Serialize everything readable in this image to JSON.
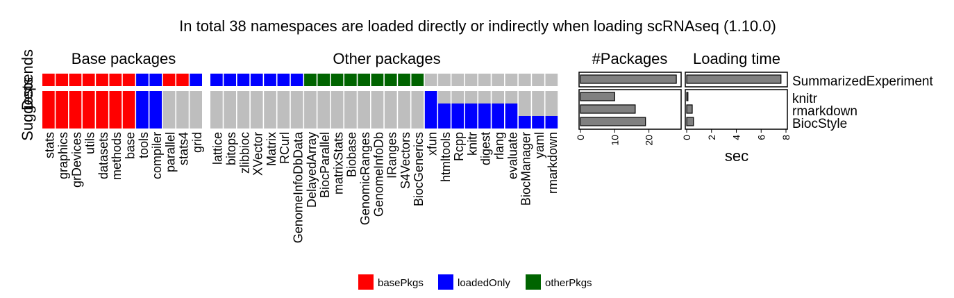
{
  "chart_data": {
    "type": "heatmap",
    "title": "In total 38 namespaces are loaded directly or indirectly when loading scRNAseq (1.10.0)",
    "rows": [
      "Depends",
      "Suggests"
    ],
    "row_label_depends": "Depends",
    "row_label_suggests": "Suggests",
    "panels": {
      "base_title": "Base packages",
      "other_title": "Other packages",
      "npkg_title": "#Packages",
      "time_title": "Loading time"
    },
    "base_packages": [
      "stats",
      "graphics",
      "grDevices",
      "utils",
      "datasets",
      "methods",
      "base",
      "tools",
      "compiler",
      "parallel",
      "stats4",
      "grid"
    ],
    "other_packages": [
      "lattice",
      "bitops",
      "zlibbioc",
      "XVector",
      "Matrix",
      "RCurl",
      "GenomeInfoDbData",
      "DelayedArray",
      "BiocParallel",
      "matrixStats",
      "Biobase",
      "GenomicRanges",
      "GenomeInfoDb",
      "IRanges",
      "S4Vectors",
      "BiocGenerics",
      "xfun",
      "htmltools",
      "Rcpp",
      "knitr",
      "digest",
      "rlang",
      "evaluate",
      "BiocManager",
      "yaml",
      "rmarkdown"
    ],
    "package_rows": [
      "SummarizedExperiment",
      "knitr",
      "rmarkdown",
      "BiocStyle"
    ],
    "row_groups": [
      [
        "SummarizedExperiment"
      ],
      [
        "knitr",
        "rmarkdown",
        "BiocStyle"
      ]
    ],
    "base_cells": [
      [
        "R",
        "R",
        "R",
        "R",
        "R",
        "R",
        "R",
        "B",
        "B",
        "R",
        "R",
        "B"
      ],
      [
        "R",
        "R",
        "R",
        "R",
        "R",
        "R",
        "R",
        "B",
        "B",
        "N",
        "N",
        "N"
      ],
      [
        "R",
        "R",
        "R",
        "R",
        "R",
        "R",
        "R",
        "B",
        "B",
        "N",
        "N",
        "N"
      ],
      [
        "R",
        "R",
        "R",
        "R",
        "R",
        "R",
        "R",
        "B",
        "B",
        "N",
        "N",
        "N"
      ]
    ],
    "other_cells": [
      [
        "B",
        "B",
        "B",
        "B",
        "B",
        "B",
        "B",
        "G",
        "G",
        "G",
        "G",
        "G",
        "G",
        "G",
        "G",
        "G",
        "N",
        "N",
        "N",
        "N",
        "N",
        "N",
        "N",
        "N",
        "N",
        "N"
      ],
      [
        "N",
        "N",
        "N",
        "N",
        "N",
        "N",
        "N",
        "N",
        "N",
        "N",
        "N",
        "N",
        "N",
        "N",
        "N",
        "N",
        "B",
        "N",
        "N",
        "N",
        "N",
        "N",
        "N",
        "N",
        "N",
        "N"
      ],
      [
        "N",
        "N",
        "N",
        "N",
        "N",
        "N",
        "N",
        "N",
        "N",
        "N",
        "N",
        "N",
        "N",
        "N",
        "N",
        "N",
        "B",
        "B",
        "B",
        "B",
        "B",
        "B",
        "B",
        "N",
        "N",
        "N"
      ],
      [
        "N",
        "N",
        "N",
        "N",
        "N",
        "N",
        "N",
        "N",
        "N",
        "N",
        "N",
        "N",
        "N",
        "N",
        "N",
        "N",
        "B",
        "B",
        "B",
        "B",
        "B",
        "B",
        "B",
        "B",
        "B",
        "B"
      ]
    ],
    "npkg_values": [
      28,
      10,
      16,
      19
    ],
    "npkg_xlim": [
      0,
      29
    ],
    "npkg_ticks": [
      "0",
      "10",
      "20"
    ],
    "time_values": [
      7.6,
      0.1,
      0.45,
      0.55
    ],
    "time_xlim": [
      0,
      8
    ],
    "time_ticks": [
      "0",
      "2",
      "4",
      "6",
      "8"
    ],
    "time_xlabel": "sec",
    "legend": [
      {
        "key": "R",
        "label": "basePkgs",
        "color": "#FF0000"
      },
      {
        "key": "B",
        "label": "loadedOnly",
        "color": "#0000FF"
      },
      {
        "key": "G",
        "label": "otherPkgs",
        "color": "#006400"
      }
    ],
    "na_color": "#BEBEBE",
    "bar_color": "#808080"
  }
}
